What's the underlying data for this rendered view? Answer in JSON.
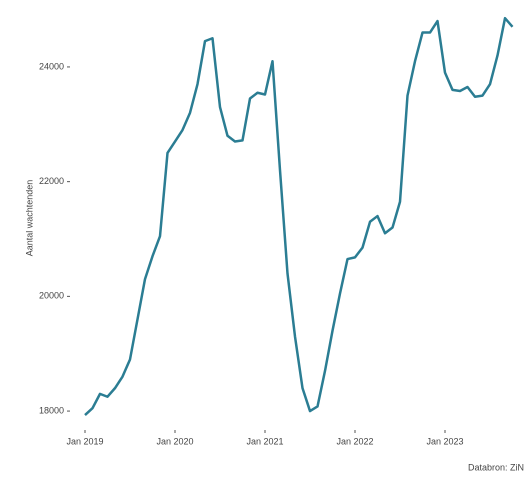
{
  "chart_data": {
    "type": "line",
    "y_label": "Aantal wachtenden",
    "caption": "Databron: ZiN",
    "x": [
      "2019-01",
      "2019-02",
      "2019-03",
      "2019-04",
      "2019-05",
      "2019-06",
      "2019-07",
      "2019-08",
      "2019-09",
      "2019-10",
      "2019-11",
      "2019-12",
      "2020-01",
      "2020-02",
      "2020-03",
      "2020-04",
      "2020-05",
      "2020-06",
      "2020-07",
      "2020-08",
      "2020-09",
      "2020-10",
      "2020-11",
      "2020-12",
      "2021-01",
      "2021-02",
      "2021-03",
      "2021-04",
      "2021-05",
      "2021-06",
      "2021-07",
      "2021-08",
      "2021-09",
      "2021-10",
      "2021-11",
      "2021-12",
      "2022-01",
      "2022-02",
      "2022-03",
      "2022-04",
      "2022-05",
      "2022-06",
      "2022-07",
      "2022-08",
      "2022-09",
      "2022-10",
      "2022-11",
      "2022-12",
      "2023-01",
      "2023-02",
      "2023-03",
      "2023-04",
      "2023-05",
      "2023-06",
      "2023-07",
      "2023-08",
      "2023-09",
      "2023-10"
    ],
    "series": [
      {
        "name": "Aantal wachtenden",
        "color": "#2b7d93",
        "values": [
          17930,
          18050,
          18300,
          18250,
          18400,
          18600,
          18900,
          19600,
          20300,
          20700,
          21050,
          22500,
          22700,
          22900,
          23200,
          23700,
          24450,
          24500,
          23300,
          22800,
          22700,
          22720,
          23450,
          23550,
          23520,
          24100,
          22200,
          20400,
          19300,
          18400,
          18000,
          18080,
          18700,
          19400,
          20050,
          20650,
          20680,
          20850,
          21300,
          21400,
          21100,
          21200,
          21650,
          23500,
          24100,
          24600,
          24600,
          24800,
          23900,
          23600,
          23580,
          23650,
          23480,
          23500,
          23700,
          24200,
          24850,
          24700
        ]
      }
    ],
    "xlim": [
      "2018-11",
      "2023-11"
    ],
    "xticks": [
      {
        "value": "2019-01",
        "label": "Jan 2019"
      },
      {
        "value": "2020-01",
        "label": "Jan 2020"
      },
      {
        "value": "2021-01",
        "label": "Jan 2021"
      },
      {
        "value": "2022-01",
        "label": "Jan 2022"
      },
      {
        "value": "2023-01",
        "label": "Jan 2023"
      }
    ],
    "ylim": [
      17670,
      25080
    ],
    "yticks": [
      18000,
      20000,
      22000,
      24000
    ],
    "grid": false
  }
}
